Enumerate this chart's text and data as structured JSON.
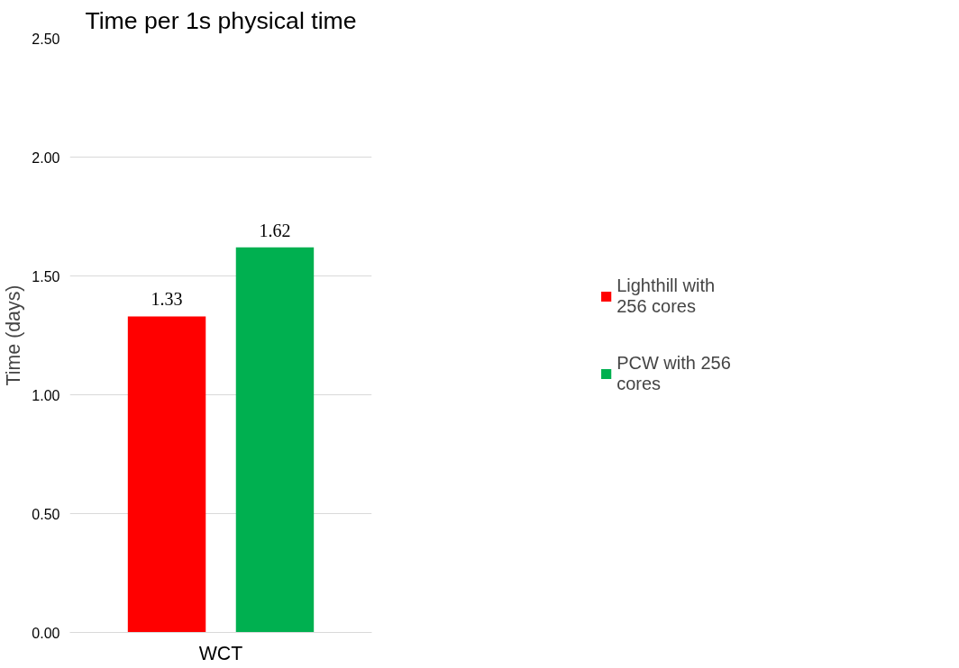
{
  "chart_data": {
    "type": "bar",
    "title": "Time per 1s physical time",
    "ylabel": "Time (days)",
    "categories": [
      "WCT"
    ],
    "series": [
      {
        "name": "Lighthill with 256 cores",
        "color": "#ff0000",
        "values": [
          1.33
        ]
      },
      {
        "name": "PCW with 256 cores",
        "color": "#00b050",
        "values": [
          1.62
        ]
      }
    ],
    "ylim": [
      0,
      2.5
    ],
    "yticks": [
      {
        "value": 0,
        "label": "0.00"
      },
      {
        "value": 0.5,
        "label": "0.50"
      },
      {
        "value": 1,
        "label": "1.00"
      },
      {
        "value": 1.5,
        "label": "1.50"
      },
      {
        "value": 2,
        "label": "2.00"
      },
      {
        "value": 2.5,
        "label": "2.50"
      }
    ],
    "grid": "y",
    "legend": "right",
    "data_labels": true
  }
}
